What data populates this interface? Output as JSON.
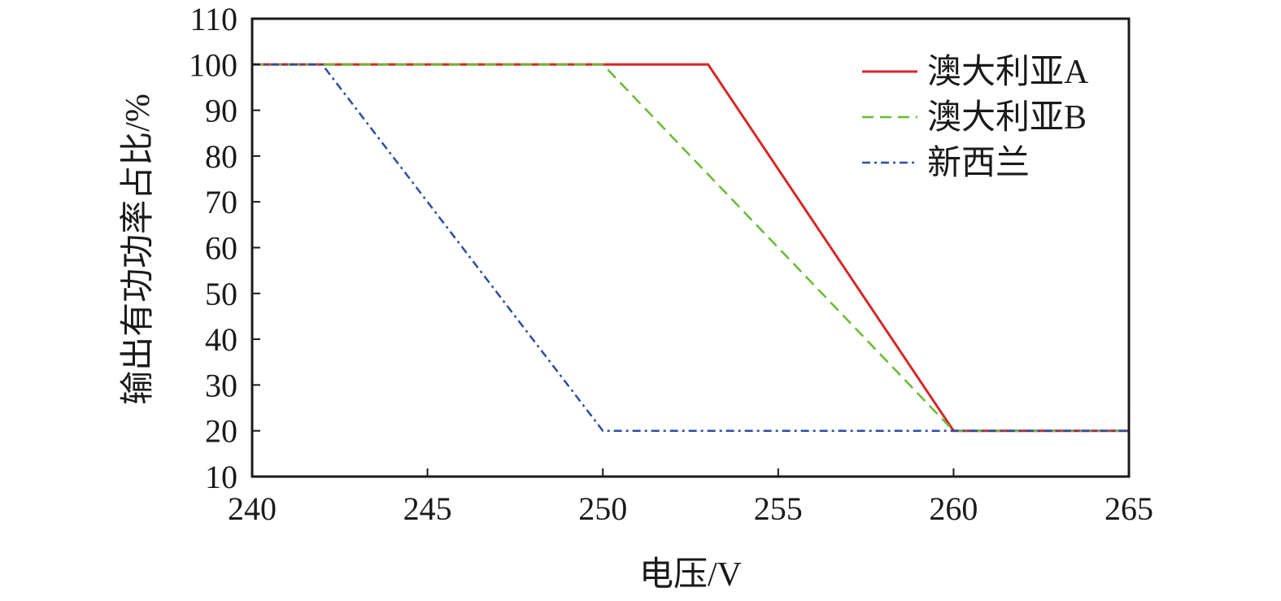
{
  "chart_data": {
    "type": "line",
    "xlabel": "电压/V",
    "ylabel": "输出有功功率占比/%",
    "xlim": [
      240,
      265
    ],
    "ylim": [
      10,
      110
    ],
    "x_ticks": [
      240,
      245,
      250,
      255,
      260,
      265
    ],
    "y_ticks": [
      10,
      20,
      30,
      40,
      50,
      60,
      70,
      80,
      90,
      100,
      110
    ],
    "grid": false,
    "legend_position": "top-right",
    "series": [
      {
        "name": "澳大利亚A",
        "color": "#d62728",
        "style": "solid",
        "points": [
          [
            240,
            100
          ],
          [
            253,
            100
          ],
          [
            260,
            20
          ],
          [
            265,
            20
          ]
        ]
      },
      {
        "name": "澳大利亚B",
        "color": "#66bb33",
        "style": "dashed",
        "points": [
          [
            240,
            100
          ],
          [
            250,
            100
          ],
          [
            260,
            20
          ],
          [
            265,
            20
          ]
        ]
      },
      {
        "name": "新西兰",
        "color": "#2b4ea2",
        "style": "dashdot",
        "points": [
          [
            240,
            100
          ],
          [
            242,
            100
          ],
          [
            250,
            20
          ],
          [
            265,
            20
          ]
        ]
      }
    ]
  }
}
